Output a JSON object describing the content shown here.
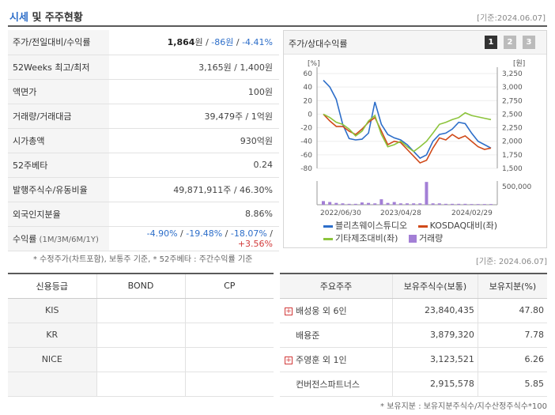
{
  "header": {
    "title_accent": "시세",
    "title_rest": " 및 주주현황",
    "base_date": "[기준:2024.06.07]"
  },
  "price_table": {
    "rows": [
      {
        "label": "주가/전일대비/수익률",
        "price": "1,864",
        "unit": "원",
        "sep1": " / ",
        "change": "-86원",
        "sep2": " / ",
        "rate": "-4.41%"
      },
      {
        "label": "52Weeks 최고/최저",
        "value": "3,165원 / 1,400원"
      },
      {
        "label": "액면가",
        "value": "100원"
      },
      {
        "label": "거래량/거래대금",
        "value": "39,479주 / 1억원"
      },
      {
        "label": "시가총액",
        "value": "930억원"
      },
      {
        "label": "52주베타",
        "value": "0.24"
      },
      {
        "label": "발행주식수/유동비율",
        "value": "49,871,911주 / 46.30%"
      },
      {
        "label": "외국인지분율",
        "value": "8.86%"
      },
      {
        "label": "수익률",
        "label_small": " (1M/3M/6M/1Y)",
        "r1": "-4.90%",
        "r2": "-19.48%",
        "r3": "-18.07%",
        "r4": "+3.56%"
      }
    ],
    "note": "* 수정주가(차트포함), 보통주 기준, * 52주베타 : 주간수익률 기준"
  },
  "chart_panel": {
    "title": "주가/상대수익률",
    "pages": [
      "1",
      "2",
      "3"
    ],
    "legend": [
      {
        "name": "블리츠웨이스튜디오",
        "color": "#2d6ec9",
        "kind": "line"
      },
      {
        "name": "KOSDAQ대비(좌)",
        "color": "#d04a1a",
        "kind": "line"
      },
      {
        "name": "기타제조대비(좌)",
        "color": "#8cc43c",
        "kind": "line"
      },
      {
        "name": "거래량",
        "color": "#a37fd6",
        "kind": "box"
      }
    ]
  },
  "chart_data": {
    "type": "line",
    "left_axis_unit": "[%]",
    "right_axis_unit": "[원]",
    "left_ticks": [
      "60",
      "40",
      "20",
      "0",
      "-20",
      "-40",
      "-60",
      "-80"
    ],
    "right_ticks": [
      "3,250",
      "3,000",
      "2,750",
      "2,500",
      "2,250",
      "2,000",
      "1,750",
      "1,500"
    ],
    "volume_tick": "500,000",
    "x_labels": [
      "2022/06/30",
      "2023/04/28",
      "2024/02/29"
    ],
    "ylim_left": [
      -80,
      60
    ],
    "ylim_right": [
      1500,
      3250
    ],
    "series": [
      {
        "name": "블리츠웨이스튜디오",
        "color": "#2d6ec9",
        "values": [
          50,
          40,
          22,
          -15,
          -36,
          -38,
          -37,
          -28,
          18,
          -15,
          -30,
          -35,
          -38,
          -45,
          -55,
          -65,
          -60,
          -40,
          -30,
          -28,
          -22,
          -12,
          -14,
          -28,
          -40,
          -45,
          -50
        ]
      },
      {
        "name": "KOSDAQ대비(좌)",
        "color": "#d04a1a",
        "values": [
          0,
          -10,
          -18,
          -18,
          -25,
          -30,
          -22,
          -12,
          -5,
          -25,
          -45,
          -40,
          -42,
          -52,
          -62,
          -72,
          -68,
          -50,
          -35,
          -38,
          -30,
          -36,
          -32,
          -40,
          -48,
          -52,
          -50
        ]
      },
      {
        "name": "기타제조대비(좌)",
        "color": "#8cc43c",
        "values": [
          0,
          -5,
          -12,
          -15,
          -22,
          -32,
          -25,
          -10,
          -2,
          -30,
          -48,
          -45,
          -40,
          -48,
          -55,
          -48,
          -40,
          -28,
          -15,
          -12,
          -8,
          -5,
          2,
          -2,
          -4,
          -6,
          -8
        ]
      }
    ],
    "volume": [
      80000,
      60000,
      40000,
      30000,
      20000,
      20000,
      50000,
      40000,
      30000,
      120000,
      40000,
      60000,
      30000,
      30000,
      30000,
      30000,
      500000,
      30000,
      30000,
      20000,
      20000,
      20000,
      20000,
      15000,
      15000,
      15000,
      15000
    ]
  },
  "credit": {
    "base_date": "[기준: 2024.06.07]",
    "headers": [
      "신용등급",
      "BOND",
      "CP"
    ],
    "rows": [
      [
        "KIS",
        "",
        ""
      ],
      [
        "KR",
        "",
        ""
      ],
      [
        "NICE",
        "",
        ""
      ]
    ]
  },
  "holders": {
    "headers": [
      "주요주주",
      "보유주식수(보통)",
      "보유지분(%)"
    ],
    "rows": [
      {
        "name": "배성웅 외 6인",
        "shares": "23,840,435",
        "pct": "47.80",
        "expand": true
      },
      {
        "name": "배용준",
        "shares": "3,879,320",
        "pct": "7.78",
        "expand": false
      },
      {
        "name": "주영훈 외 1인",
        "shares": "3,123,521",
        "pct": "6.26",
        "expand": true
      },
      {
        "name": "컨버전스파트너스",
        "shares": "2,915,578",
        "pct": "5.85",
        "expand": false
      }
    ],
    "note": "* 보유지분 : 보유지분주식수/지수산정주식수*100"
  }
}
